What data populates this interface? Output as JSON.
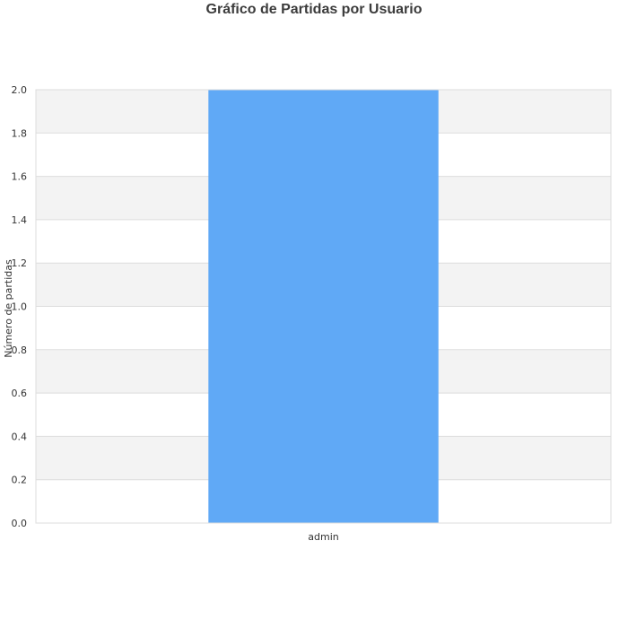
{
  "chart_data": {
    "type": "bar",
    "title": "Gráfico de Partidas por Usuario",
    "xlabel": "",
    "ylabel": "Número de partidas",
    "categories": [
      "admin"
    ],
    "values": [
      2
    ],
    "ylim": [
      0,
      2
    ],
    "yticks": [
      0.0,
      0.2,
      0.4,
      0.6,
      0.8,
      1.0,
      1.2,
      1.4,
      1.6,
      1.8,
      2.0
    ],
    "grid": true,
    "legend": "none",
    "colors": {
      "bar": "#60a9f6",
      "band": "#f3f3f3",
      "grid": "#dddddd",
      "text": "#333333"
    }
  }
}
